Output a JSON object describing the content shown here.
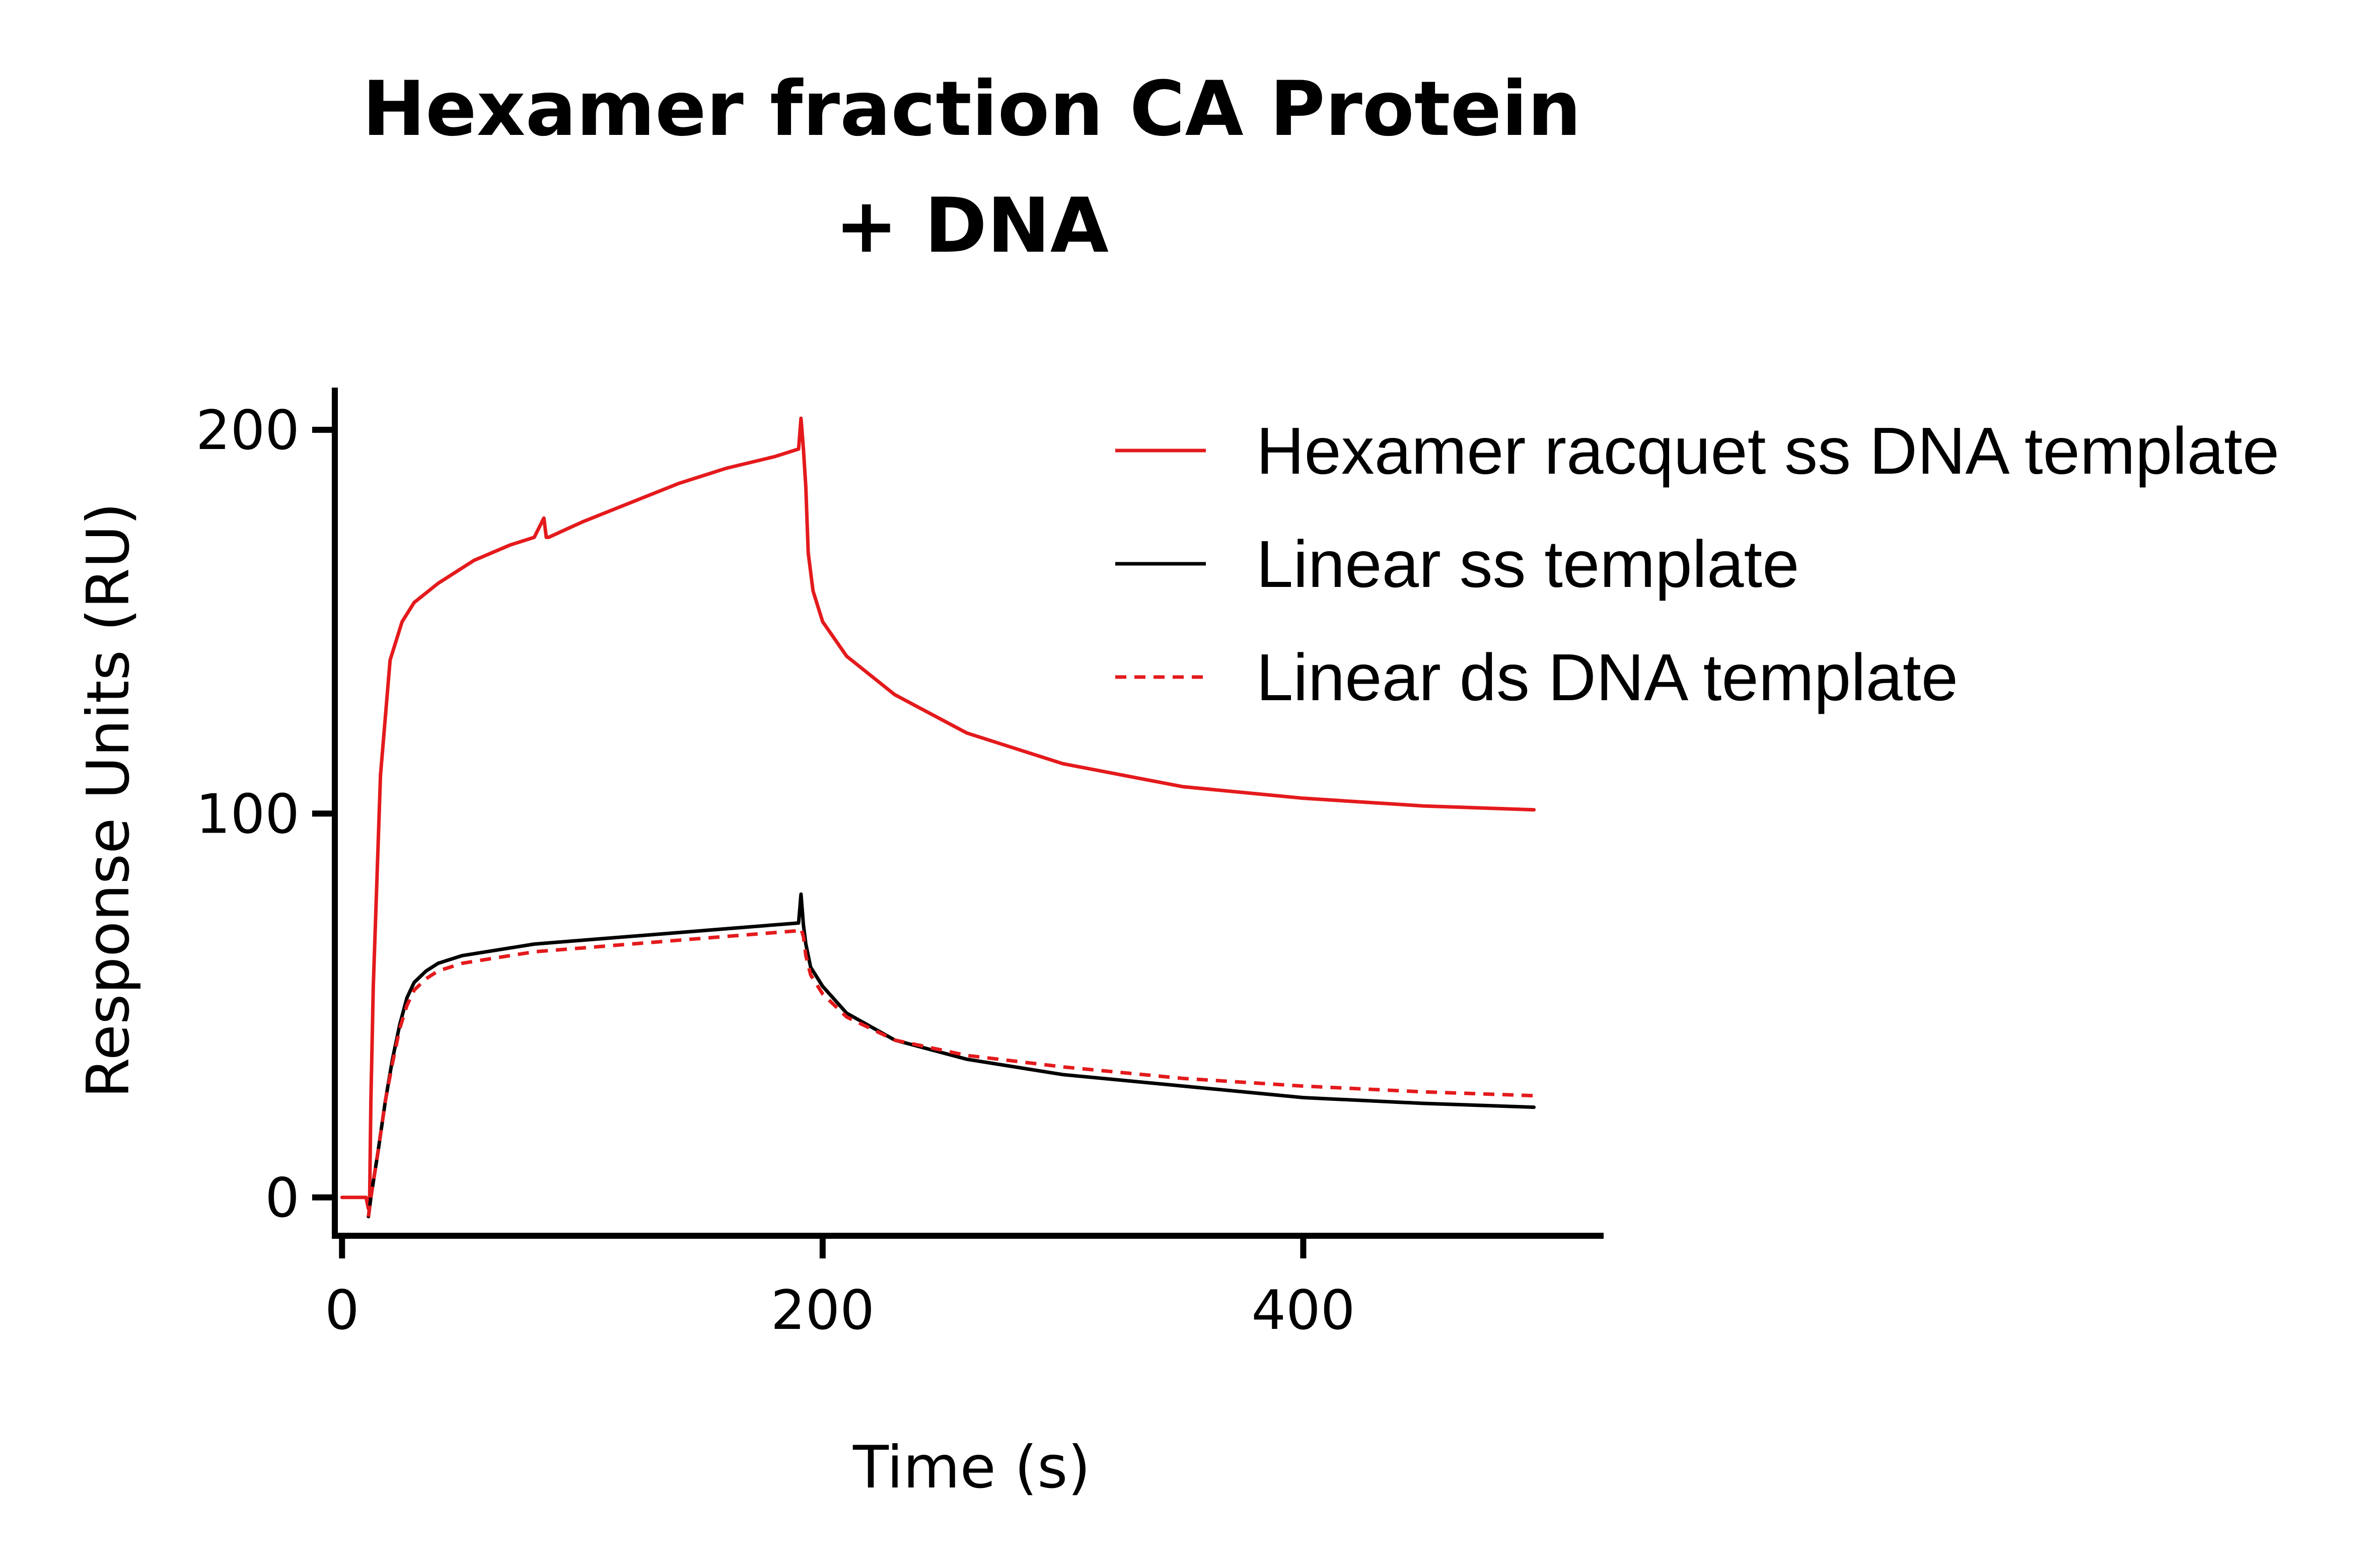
{
  "chart_data": {
    "type": "line",
    "title": [
      "Hexamer fraction CA Protein",
      "+ DNA"
    ],
    "xlabel": "Time (s)",
    "ylabel": "Response Units (RU)",
    "xlim": [
      -3,
      525
    ],
    "ylim": [
      -10,
      211
    ],
    "xticks": [
      0,
      200,
      400
    ],
    "yticks": [
      0,
      100,
      200
    ],
    "xtick_labels": [
      "0",
      "200",
      "400"
    ],
    "ytick_labels": [
      "0",
      "100",
      "200"
    ],
    "grid": false,
    "legend_position": "top-right",
    "series": [
      {
        "name": "Hexamer racquet ss DNA template",
        "color": "#e41a1c",
        "style": "solid",
        "x": [
          0,
          5,
          10,
          11,
          11.5,
          12,
          13,
          16,
          20,
          25,
          30,
          40,
          55,
          70,
          80,
          84,
          85,
          86,
          100,
          120,
          140,
          160,
          180,
          190,
          191,
          192,
          193,
          194,
          196,
          200,
          210,
          230,
          260,
          300,
          350,
          400,
          450,
          496
        ],
        "y": [
          0,
          0,
          0,
          -3,
          0,
          25,
          55,
          110,
          140,
          150,
          155,
          160,
          166,
          170,
          172,
          177,
          172,
          172,
          176,
          181,
          186,
          190,
          193,
          195,
          203,
          195,
          185,
          168,
          158,
          150,
          141,
          131,
          121,
          113,
          107,
          104,
          102,
          101
        ]
      },
      {
        "name": "Linear ss template",
        "color": "#000000",
        "style": "solid",
        "x": [
          11,
          12,
          15,
          18,
          21,
          24,
          27,
          30,
          35,
          40,
          50,
          60,
          80,
          100,
          130,
          160,
          190,
          191,
          192,
          193,
          195,
          200,
          210,
          230,
          260,
          300,
          350,
          400,
          450,
          496
        ],
        "y": [
          -5,
          0,
          12,
          25,
          36,
          45,
          52,
          56,
          59,
          61,
          63,
          64,
          66,
          67,
          68.5,
          70,
          71.5,
          79,
          71,
          66,
          60,
          55,
          48,
          41,
          36,
          32,
          29,
          26,
          24.5,
          23.5
        ]
      },
      {
        "name": "Linear ds DNA template",
        "color": "#e41a1c",
        "style": "dashed",
        "x": [
          11,
          12,
          15,
          18,
          21,
          24,
          27,
          30,
          35,
          40,
          50,
          60,
          80,
          100,
          130,
          160,
          190,
          191,
          192,
          193,
          195,
          200,
          210,
          230,
          260,
          300,
          350,
          400,
          450,
          496
        ],
        "y": [
          -5,
          0,
          12,
          25,
          35,
          44,
          50,
          54,
          57,
          59,
          61,
          62,
          64,
          65,
          66.5,
          68,
          69.5,
          70,
          68,
          63,
          58,
          53,
          47,
          41,
          37,
          34,
          31,
          29,
          27.5,
          26.5
        ]
      }
    ]
  }
}
